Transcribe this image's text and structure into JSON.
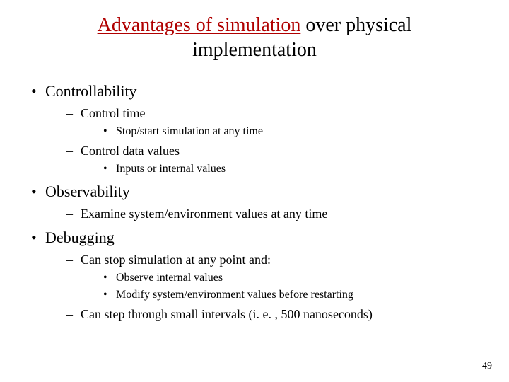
{
  "colors": {
    "background": "#ffffff",
    "text": "#000000",
    "highlight": "#b00000"
  },
  "typography": {
    "family": "Times New Roman",
    "title_fontsize": 28,
    "lvl1_fontsize": 22,
    "lvl2_fontsize": 18,
    "lvl3_fontsize": 16,
    "pagenum_fontsize": 14
  },
  "title": {
    "highlight": "Advantages of simulation",
    "rest": " over physical implementation"
  },
  "bullets": [
    {
      "text": "Controllability",
      "children": [
        {
          "text": "Control time",
          "children": [
            {
              "text": "Stop/start simulation at any time"
            }
          ]
        },
        {
          "text": "Control data values",
          "children": [
            {
              "text": "Inputs or internal values"
            }
          ]
        }
      ]
    },
    {
      "text": "Observability",
      "children": [
        {
          "text": "Examine system/environment values at any time"
        }
      ]
    },
    {
      "text": "Debugging",
      "children": [
        {
          "text": "Can stop simulation at any point and:",
          "children": [
            {
              "text": "Observe internal values"
            },
            {
              "text": "Modify system/environment values before restarting"
            }
          ]
        },
        {
          "text": "Can step through small intervals (i. e. , 500 nanoseconds)"
        }
      ]
    }
  ],
  "page_number": "49"
}
